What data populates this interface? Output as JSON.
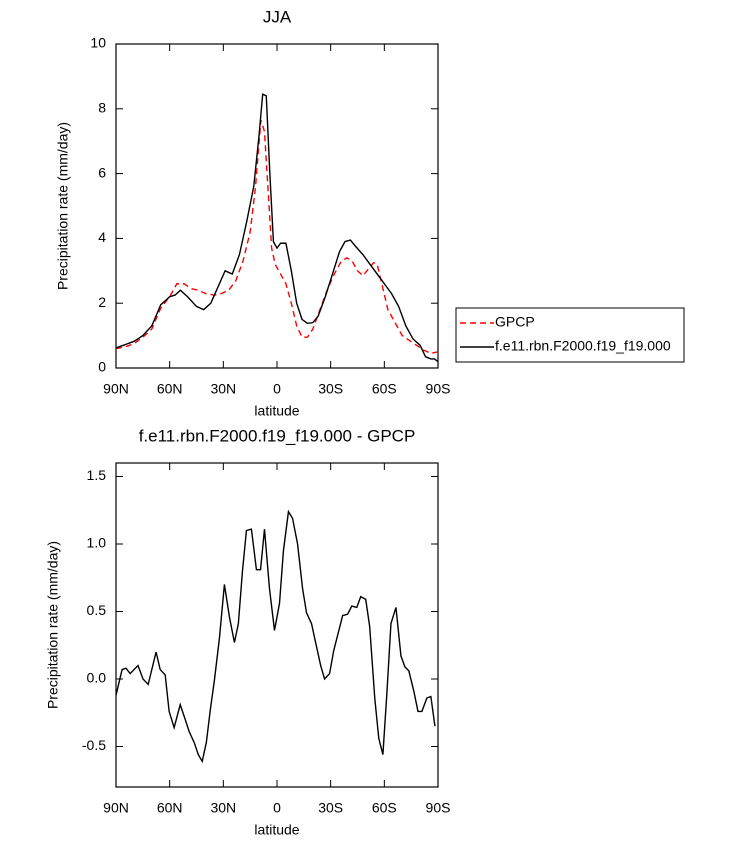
{
  "chart_data": [
    {
      "type": "line",
      "title": "JJA",
      "xlabel": "latitude",
      "ylabel": "Precipitation rate (mm/day)",
      "xlim": [
        90,
        -90
      ],
      "ylim": [
        0,
        10
      ],
      "xticks": [
        {
          "value": 90,
          "label": "90N"
        },
        {
          "value": 60,
          "label": "60N"
        },
        {
          "value": 30,
          "label": "30N"
        },
        0,
        {
          "value": -30,
          "label": "30S"
        },
        {
          "value": -60,
          "label": "60S"
        },
        {
          "value": -90,
          "label": "90S"
        }
      ],
      "yticks": [
        0,
        2,
        4,
        6,
        8,
        10
      ],
      "legend": "right",
      "series": [
        {
          "name": "GPCP",
          "color": "#ff0000",
          "dash": true,
          "x": [
            90,
            85,
            80,
            75,
            70,
            65,
            60,
            56,
            52,
            48,
            44,
            40,
            35,
            31,
            27,
            23,
            19,
            15,
            12,
            9,
            7,
            5,
            3,
            1,
            -2,
            -5,
            -8,
            -11,
            -14,
            -17,
            -20,
            -24,
            -28,
            -32,
            -36,
            -39,
            -42,
            -45,
            -48,
            -51,
            -54,
            -56,
            -59,
            -62,
            -66,
            -70,
            -74,
            -78,
            -82,
            -86,
            -90
          ],
          "values": [
            0.6,
            0.65,
            0.75,
            0.95,
            1.2,
            1.85,
            2.2,
            2.6,
            2.6,
            2.45,
            2.4,
            2.3,
            2.25,
            2.3,
            2.4,
            2.7,
            3.3,
            4.2,
            5.6,
            7.65,
            7.3,
            5.5,
            3.7,
            3.2,
            2.9,
            2.6,
            2.0,
            1.3,
            0.95,
            0.95,
            1.2,
            1.8,
            2.4,
            2.9,
            3.3,
            3.4,
            3.3,
            3.0,
            2.85,
            3.05,
            3.25,
            3.2,
            2.5,
            1.8,
            1.4,
            1.0,
            0.85,
            0.7,
            0.55,
            0.45,
            0.5
          ]
        },
        {
          "name": "f.e11.rbn.F2000.f19_f19.000",
          "color": "#000000",
          "dash": false,
          "x": [
            90,
            85,
            80,
            75,
            70,
            65,
            60,
            57,
            54,
            50,
            45,
            41,
            37,
            33,
            29,
            25,
            21,
            17,
            13,
            10,
            8,
            6,
            4,
            2,
            0,
            -2,
            -5,
            -8,
            -11,
            -14,
            -17,
            -20,
            -23,
            -27,
            -31,
            -35,
            -38,
            -41,
            -44,
            -48,
            -52,
            -56,
            -60,
            -64,
            -68,
            -72,
            -76,
            -80,
            -83,
            -86,
            -88,
            -90
          ],
          "values": [
            0.62,
            0.72,
            0.82,
            1.0,
            1.3,
            1.95,
            2.2,
            2.25,
            2.4,
            2.2,
            1.9,
            1.8,
            2.0,
            2.5,
            3.0,
            2.9,
            3.5,
            4.5,
            5.6,
            7.2,
            8.45,
            8.4,
            6.0,
            3.9,
            3.7,
            3.85,
            3.85,
            3.0,
            2.0,
            1.5,
            1.38,
            1.4,
            1.6,
            2.2,
            2.9,
            3.6,
            3.9,
            3.95,
            3.75,
            3.5,
            3.2,
            2.9,
            2.6,
            2.3,
            1.9,
            1.3,
            0.9,
            0.7,
            0.35,
            0.28,
            0.28,
            0.2
          ]
        }
      ]
    },
    {
      "type": "line",
      "title": "f.e11.rbn.F2000.f19_f19.000 - GPCP",
      "xlabel": "latitude",
      "ylabel": "Precipitation rate (mm/day)",
      "xlim": [
        90,
        -90
      ],
      "ylim": [
        -0.8,
        1.6
      ],
      "xticks": [
        {
          "value": 90,
          "label": "90N"
        },
        {
          "value": 60,
          "label": "60N"
        },
        {
          "value": 30,
          "label": "30N"
        },
        0,
        {
          "value": -30,
          "label": "30S"
        },
        {
          "value": -60,
          "label": "60S"
        },
        {
          "value": -90,
          "label": "90S"
        }
      ],
      "yticks": [
        -0.5,
        {
          "value": 0,
          "label": "0.0"
        },
        0.5,
        {
          "value": 1,
          "label": "1.0"
        },
        1.5
      ],
      "series": [
        {
          "color": "#000000",
          "dash": false,
          "x": [
            90,
            86.6,
            84.4,
            82.1,
            77.7,
            74.9,
            72,
            67.6,
            65.3,
            62.5,
            60.3,
            57.5,
            54.1,
            51.3,
            49.1,
            46.3,
            44,
            41.8,
            39.5,
            37.3,
            35,
            32.2,
            29.4,
            26.6,
            23.8,
            21.6,
            19.3,
            17.1,
            14.3,
            11.5,
            9.2,
            7,
            4.2,
            1.4,
            -1.4,
            -3.6,
            -6.4,
            -8.7,
            -11.5,
            -14.3,
            -16.5,
            -19.3,
            -21.6,
            -24.4,
            -26.6,
            -29.4,
            -31.7,
            -36.7,
            -39.5,
            -41.8,
            -44.6,
            -46.8,
            -49.6,
            -51.8,
            -54.7,
            -56.9,
            -59.2,
            -61.4,
            -63.7,
            -66.5,
            -69.3,
            -71.5,
            -73.7,
            -76.5,
            -78.8,
            -81,
            -83.8,
            -86,
            -88.3
          ],
          "values": [
            -0.12,
            0.07,
            0.08,
            0.04,
            0.1,
            0.0,
            -0.04,
            0.2,
            0.07,
            0.03,
            -0.24,
            -0.36,
            -0.19,
            -0.3,
            -0.39,
            -0.47,
            -0.56,
            -0.61,
            -0.47,
            -0.23,
            -0.01,
            0.3,
            0.7,
            0.46,
            0.27,
            0.41,
            0.8,
            1.1,
            1.11,
            0.81,
            0.81,
            1.11,
            0.67,
            0.36,
            0.56,
            0.95,
            1.24,
            1.19,
            1.0,
            0.67,
            0.49,
            0.41,
            0.27,
            0.1,
            0.0,
            0.04,
            0.21,
            0.47,
            0.48,
            0.54,
            0.53,
            0.61,
            0.59,
            0.39,
            -0.15,
            -0.44,
            -0.56,
            -0.11,
            0.41,
            0.53,
            0.17,
            0.09,
            0.06,
            -0.09,
            -0.24,
            -0.24,
            -0.14,
            -0.13,
            -0.35
          ]
        }
      ]
    }
  ]
}
